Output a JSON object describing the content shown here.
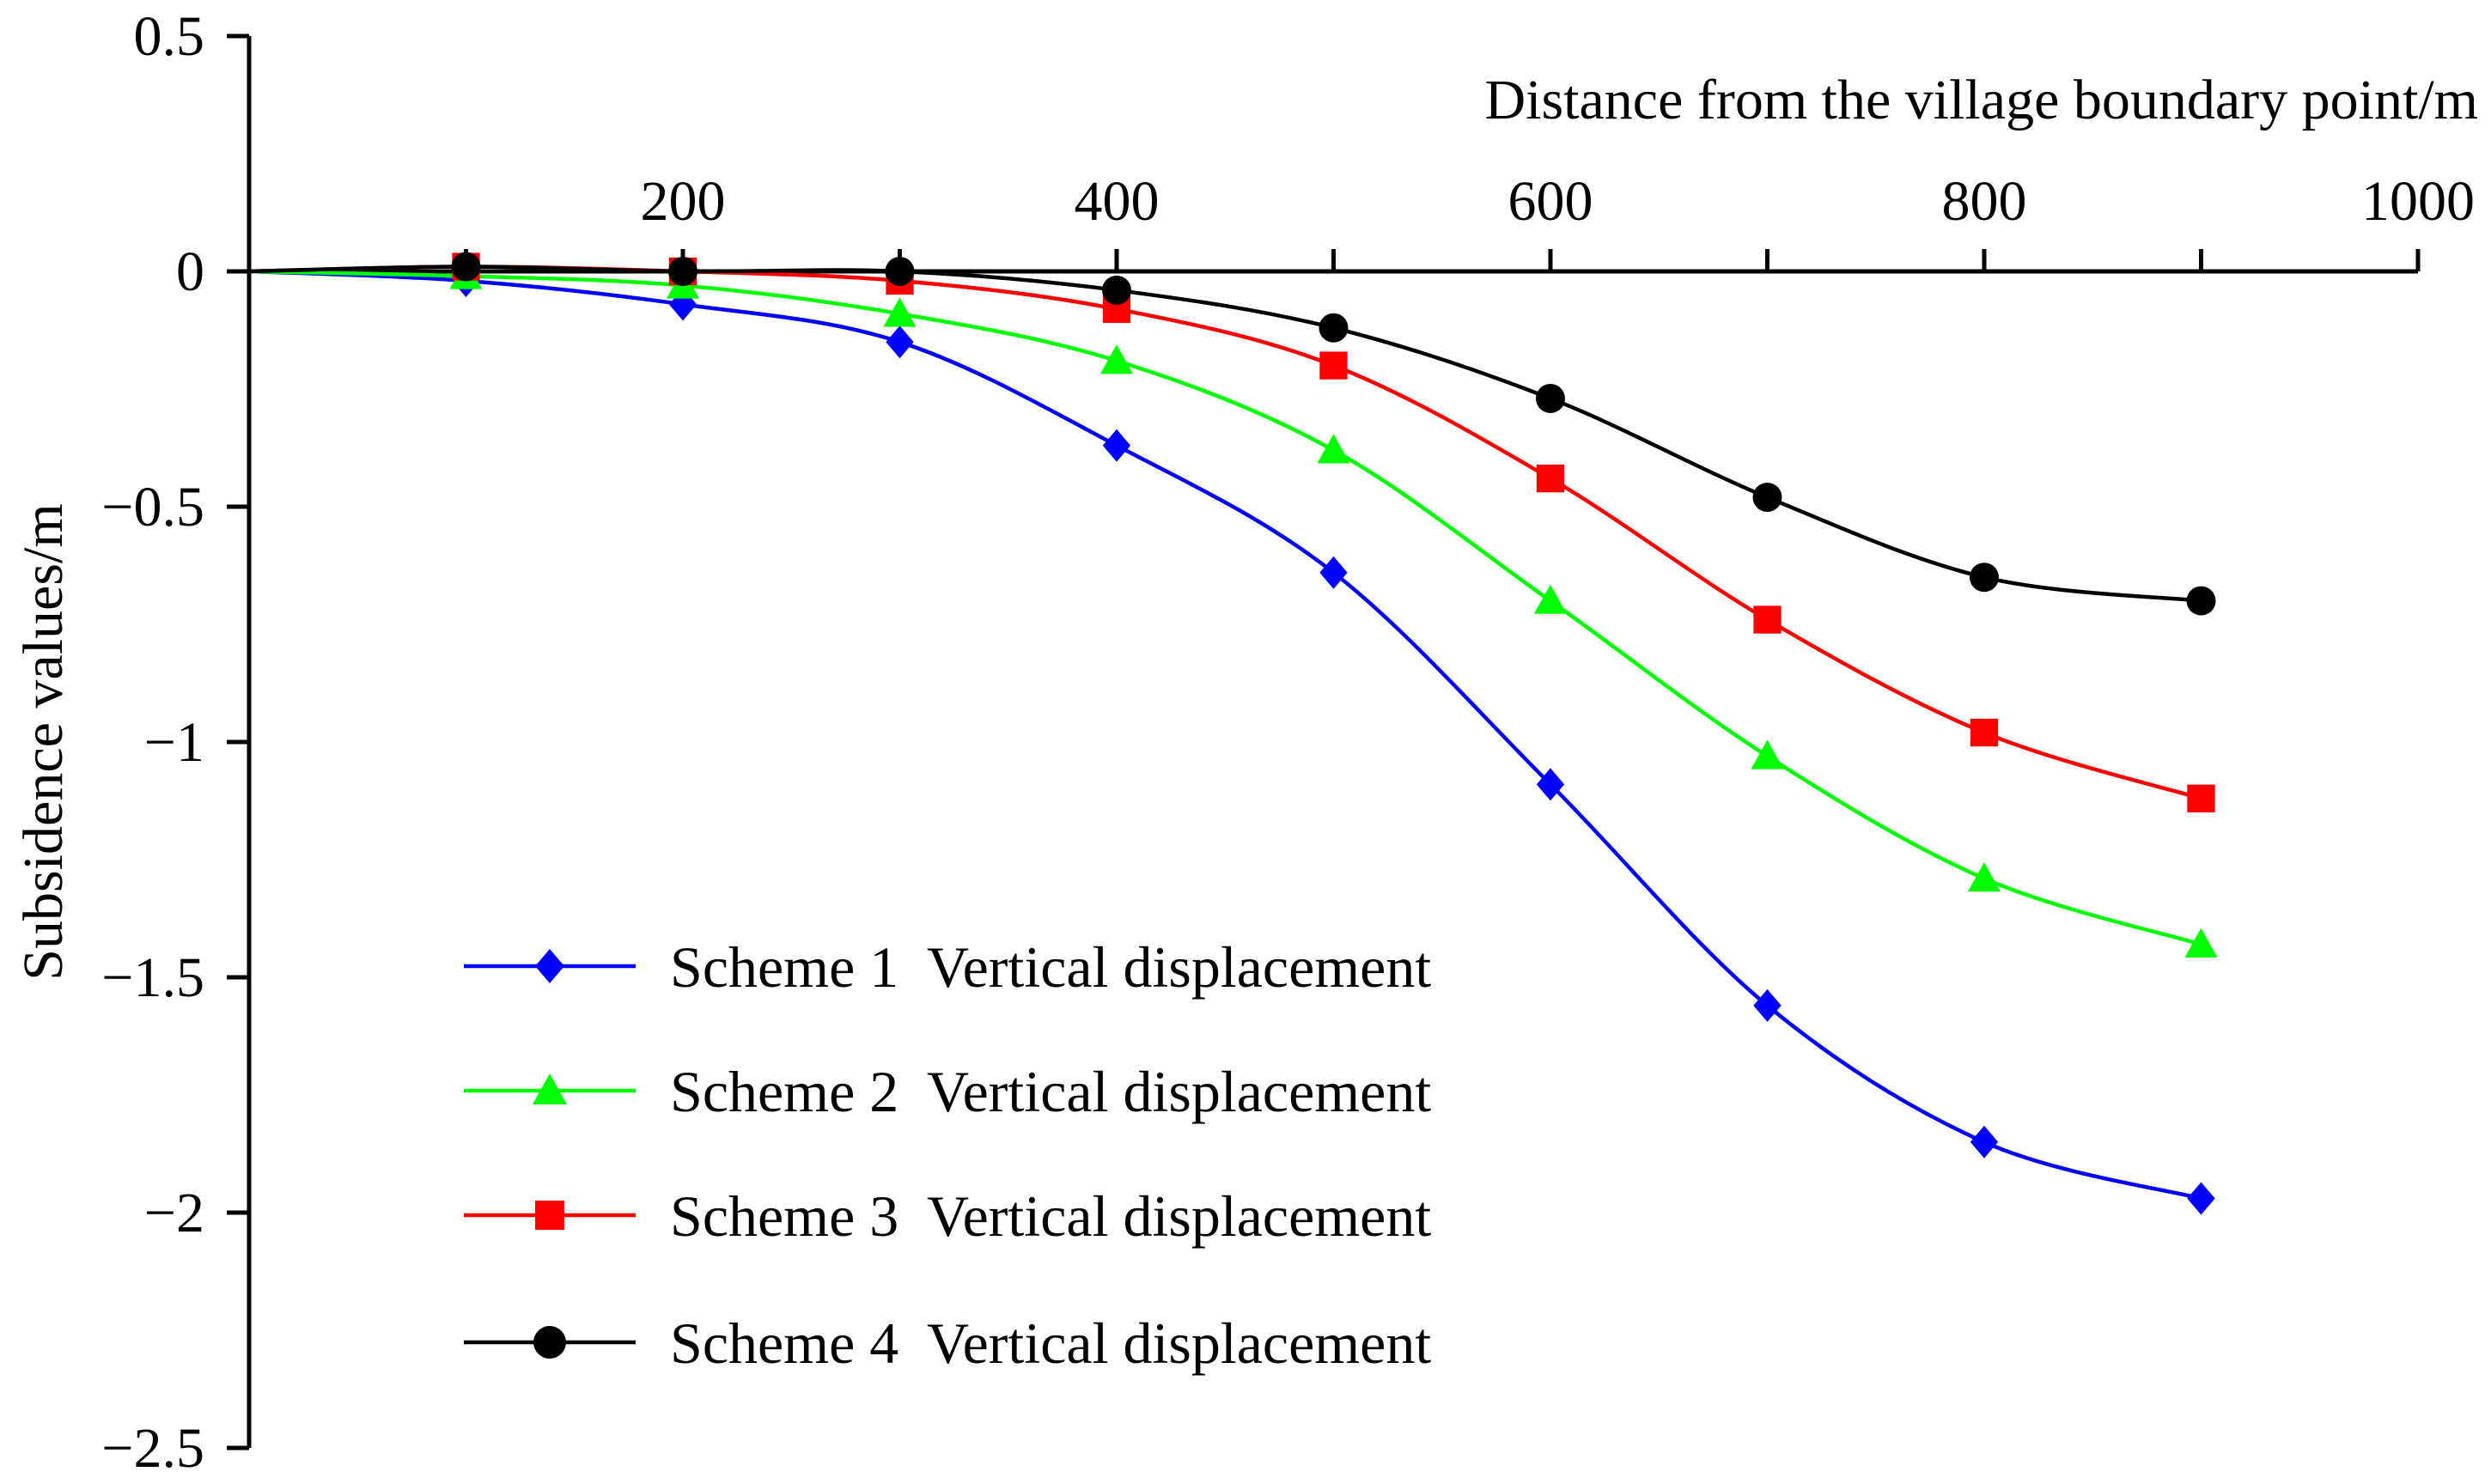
{
  "chart_data": {
    "type": "line",
    "title": "",
    "xlabel": "Distance from the village boundary point/m",
    "ylabel": "Subsidence values/m",
    "xlim": [
      0,
      1000
    ],
    "ylim": [
      -2.5,
      0.5
    ],
    "x_ticks": [
      200,
      400,
      600,
      800,
      1000
    ],
    "x_tick_labels": [
      "200",
      "400",
      "600",
      "800",
      "1000"
    ],
    "y_ticks": [
      0.5,
      0,
      -0.5,
      -1,
      -1.5,
      -2,
      -2.5
    ],
    "y_tick_labels": [
      "0.5",
      "0",
      "−0.5",
      "−1",
      "−1.5",
      "−2",
      "−2.5"
    ],
    "grid": false,
    "legend_position": "bottom-left",
    "series": [
      {
        "name": "Scheme 1  Vertical displacement",
        "color": "#0000ff",
        "marker": "diamond",
        "x": [
          0,
          100,
          200,
          300,
          400,
          500,
          600,
          700,
          800,
          900
        ],
        "y": [
          0,
          -0.02,
          -0.07,
          -0.15,
          -0.37,
          -0.64,
          -1.09,
          -1.56,
          -1.85,
          -1.97
        ]
      },
      {
        "name": "Scheme 2  Vertical displacement",
        "color": "#00ff00",
        "marker": "triangle",
        "x": [
          0,
          100,
          200,
          300,
          400,
          500,
          600,
          700,
          800,
          900
        ],
        "y": [
          0,
          -0.01,
          -0.03,
          -0.09,
          -0.19,
          -0.38,
          -0.7,
          -1.03,
          -1.29,
          -1.43
        ]
      },
      {
        "name": "Scheme 3  Vertical displacement",
        "color": "#ff0000",
        "marker": "square",
        "x": [
          0,
          100,
          200,
          300,
          400,
          500,
          600,
          700,
          800,
          900
        ],
        "y": [
          0,
          0.01,
          0.0,
          -0.02,
          -0.08,
          -0.2,
          -0.44,
          -0.74,
          -0.98,
          -1.12
        ]
      },
      {
        "name": "Scheme 4  Vertical displacement",
        "color": "#000000",
        "marker": "circle",
        "x": [
          0,
          100,
          200,
          300,
          400,
          500,
          600,
          700,
          800,
          900
        ],
        "y": [
          0,
          0.01,
          0.0,
          0.0,
          -0.04,
          -0.12,
          -0.27,
          -0.48,
          -0.65,
          -0.7
        ]
      }
    ]
  }
}
